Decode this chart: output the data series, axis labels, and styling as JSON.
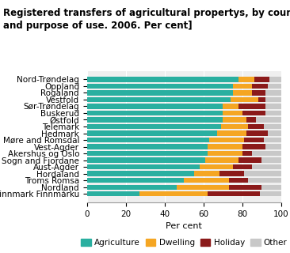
{
  "title": "Registered transfers of agricultural propertys, by county\nand purpose of use. 2006. Per cent]",
  "categories": [
    "Finnmark Finnmárku",
    "Nordland",
    "Troms Romsa",
    "Hordaland",
    "Aust-Agder",
    "Sogn and Fjordane",
    "Akershus og Oslo",
    "Vest-Agder",
    "Møre and Romsdal",
    "Hedmark",
    "Telemark",
    "Østfold",
    "Buskerud",
    "Sør-Trøndelag",
    "Vestfold",
    "Rogaland",
    "Oppland",
    "Nord-Trøndelag"
  ],
  "agriculture": [
    27,
    46,
    50,
    55,
    58,
    61,
    62,
    62,
    63,
    67,
    69,
    70,
    70,
    70,
    74,
    75,
    75,
    78
  ],
  "dwelling": [
    35,
    27,
    23,
    13,
    17,
    17,
    18,
    18,
    18,
    15,
    14,
    12,
    10,
    8,
    14,
    10,
    10,
    8
  ],
  "holiday": [
    27,
    17,
    10,
    13,
    10,
    12,
    5,
    12,
    10,
    11,
    8,
    5,
    12,
    14,
    4,
    7,
    8,
    8
  ],
  "other": [
    11,
    10,
    17,
    19,
    15,
    10,
    15,
    8,
    9,
    7,
    9,
    13,
    8,
    8,
    8,
    8,
    7,
    6
  ],
  "colors": {
    "agriculture": "#2AAFA0",
    "dwelling": "#F5A623",
    "holiday": "#8B1A1A",
    "other": "#C8C8C8"
  },
  "xlabel": "Per cent",
  "xlim": [
    0,
    100
  ],
  "xticks": [
    0,
    20,
    40,
    60,
    80,
    100
  ],
  "legend_labels": [
    "Agriculture",
    "Dwelling",
    "Holiday",
    "Other"
  ],
  "title_fontsize": 8.5,
  "axis_fontsize": 8,
  "tick_fontsize": 7.5,
  "bar_height": 0.75
}
